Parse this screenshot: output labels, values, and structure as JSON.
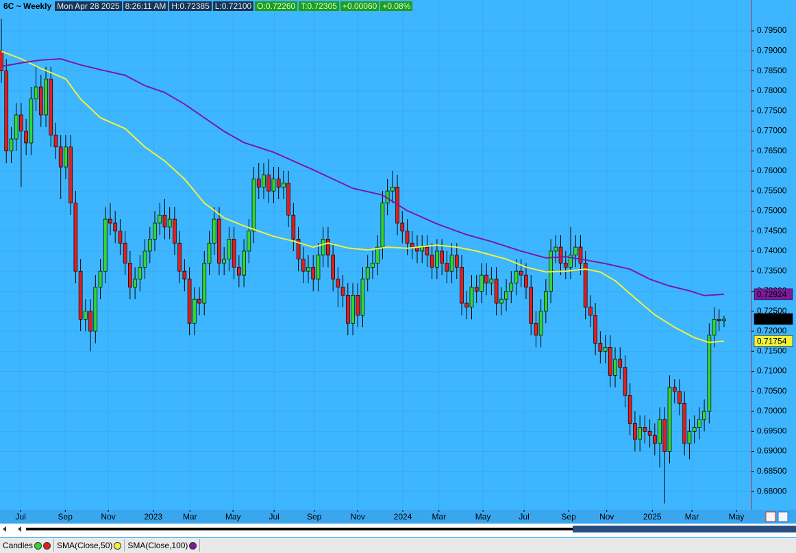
{
  "header": {
    "symbol": "6C ~ Weekly",
    "date": "Mon Apr 28 2025",
    "time": "8:26:11 AM",
    "high": "H:0.72385",
    "low": "L:0.72100",
    "open": "O:0.72260",
    "last": "T:0.72305",
    "change": "+0.00060",
    "change_pct": "+0.08%"
  },
  "chart_data": {
    "type": "candlestick",
    "grid": true,
    "ylim": [
      0.6754,
      0.8027
    ],
    "yticks": [
      {
        "value": 0.68,
        "label": "0.68000"
      },
      {
        "value": 0.685,
        "label": "0.68500"
      },
      {
        "value": 0.69,
        "label": "0.69000"
      },
      {
        "value": 0.695,
        "label": "0.69500"
      },
      {
        "value": 0.7,
        "label": "0.70000"
      },
      {
        "value": 0.705,
        "label": "0.70500"
      },
      {
        "value": 0.71,
        "label": "0.71000"
      },
      {
        "value": 0.715,
        "label": "0.71500"
      },
      {
        "value": 0.72,
        "label": "0.72000"
      },
      {
        "value": 0.725,
        "label": "0.72500"
      },
      {
        "value": 0.73,
        "label": "0.73000"
      },
      {
        "value": 0.735,
        "label": "0.73500"
      },
      {
        "value": 0.74,
        "label": "0.74000"
      },
      {
        "value": 0.745,
        "label": "0.74500"
      },
      {
        "value": 0.75,
        "label": "0.75000"
      },
      {
        "value": 0.755,
        "label": "0.75500"
      },
      {
        "value": 0.76,
        "label": "0.76000"
      },
      {
        "value": 0.765,
        "label": "0.76500"
      },
      {
        "value": 0.77,
        "label": "0.77000"
      },
      {
        "value": 0.775,
        "label": "0.77500"
      },
      {
        "value": 0.78,
        "label": "0.78000"
      },
      {
        "value": 0.785,
        "label": "0.78500"
      },
      {
        "value": 0.79,
        "label": "0.79000"
      },
      {
        "value": 0.795,
        "label": "0.79500"
      }
    ],
    "xticks": [
      {
        "value": 3.9,
        "label": "Jul"
      },
      {
        "value": 12.9,
        "label": "Sep"
      },
      {
        "value": 21.6,
        "label": "Nov"
      },
      {
        "value": 30.7,
        "label": "2023"
      },
      {
        "value": 38.1,
        "label": "Mar"
      },
      {
        "value": 46.8,
        "label": "May"
      },
      {
        "value": 55.1,
        "label": "Jul"
      },
      {
        "value": 63.2,
        "label": "Sep"
      },
      {
        "value": 72.0,
        "label": "Nov"
      },
      {
        "value": 81.1,
        "label": "2024"
      },
      {
        "value": 88.4,
        "label": "Mar"
      },
      {
        "value": 97.3,
        "label": "May"
      },
      {
        "value": 105.6,
        "label": "Jul"
      },
      {
        "value": 114.6,
        "label": "Sep"
      },
      {
        "value": 122.3,
        "label": "Nov"
      },
      {
        "value": 131.5,
        "label": "2025"
      },
      {
        "value": 139.5,
        "label": "Mar"
      },
      {
        "value": 148.5,
        "label": "May"
      }
    ],
    "candles": {
      "name": "Candles",
      "up_color": "#33d633",
      "down_color": "#e01e1e",
      "open": [
        0.79,
        0.785,
        0.765,
        0.768,
        0.774,
        0.77,
        0.767,
        0.778,
        0.781,
        0.774,
        0.783,
        0.769,
        0.766,
        0.761,
        0.766,
        0.752,
        0.735,
        0.723,
        0.725,
        0.72,
        0.731,
        0.735,
        0.748,
        0.747,
        0.745,
        0.742,
        0.737,
        0.731,
        0.733,
        0.736,
        0.74,
        0.743,
        0.747,
        0.749,
        0.746,
        0.748,
        0.742,
        0.735,
        0.733,
        0.722,
        0.728,
        0.727,
        0.737,
        0.742,
        0.748,
        0.737,
        0.738,
        0.743,
        0.736,
        0.734,
        0.74,
        0.745,
        0.758,
        0.756,
        0.759,
        0.755,
        0.758,
        0.756,
        0.757,
        0.749,
        0.743,
        0.738,
        0.735,
        0.736,
        0.733,
        0.739,
        0.743,
        0.739,
        0.733,
        0.731,
        0.729,
        0.722,
        0.729,
        0.724,
        0.733,
        0.736,
        0.737,
        0.741,
        0.752,
        0.755,
        0.756,
        0.747,
        0.745,
        0.742,
        0.741,
        0.74,
        0.741,
        0.739,
        0.736,
        0.74,
        0.737,
        0.735,
        0.739,
        0.736,
        0.727,
        0.726,
        0.731,
        0.73,
        0.734,
        0.732,
        0.733,
        0.727,
        0.728,
        0.73,
        0.732,
        0.735,
        0.734,
        0.731,
        0.722,
        0.719,
        0.725,
        0.73,
        0.74,
        0.741,
        0.737,
        0.736,
        0.739,
        0.741,
        0.737,
        0.726,
        0.724,
        0.717,
        0.715,
        0.716,
        0.709,
        0.713,
        0.711,
        0.704,
        0.697,
        0.693,
        0.696,
        0.695,
        0.694,
        0.692,
        0.698,
        0.69,
        0.706,
        0.705,
        0.702,
        0.692,
        0.695,
        0.696,
        0.698,
        0.7,
        0.719,
        0.723,
        0.7226
      ],
      "high": [
        0.798,
        0.788,
        0.771,
        0.777,
        0.777,
        0.773,
        0.781,
        0.786,
        0.784,
        0.786,
        0.786,
        0.772,
        0.769,
        0.769,
        0.769,
        0.755,
        0.738,
        0.728,
        0.728,
        0.734,
        0.738,
        0.751,
        0.752,
        0.75,
        0.748,
        0.745,
        0.74,
        0.736,
        0.739,
        0.743,
        0.746,
        0.75,
        0.752,
        0.753,
        0.751,
        0.751,
        0.745,
        0.738,
        0.736,
        0.731,
        0.731,
        0.74,
        0.745,
        0.751,
        0.751,
        0.741,
        0.746,
        0.746,
        0.739,
        0.743,
        0.748,
        0.761,
        0.762,
        0.762,
        0.763,
        0.761,
        0.761,
        0.76,
        0.76,
        0.752,
        0.746,
        0.741,
        0.739,
        0.739,
        0.742,
        0.746,
        0.746,
        0.742,
        0.736,
        0.734,
        0.732,
        0.732,
        0.732,
        0.736,
        0.739,
        0.74,
        0.744,
        0.755,
        0.758,
        0.76,
        0.759,
        0.75,
        0.748,
        0.745,
        0.744,
        0.744,
        0.744,
        0.742,
        0.743,
        0.743,
        0.74,
        0.742,
        0.742,
        0.739,
        0.73,
        0.734,
        0.734,
        0.737,
        0.737,
        0.736,
        0.736,
        0.731,
        0.733,
        0.735,
        0.738,
        0.738,
        0.737,
        0.734,
        0.725,
        0.728,
        0.733,
        0.743,
        0.744,
        0.744,
        0.74,
        0.746,
        0.744,
        0.744,
        0.74,
        0.729,
        0.727,
        0.72,
        0.719,
        0.719,
        0.716,
        0.716,
        0.714,
        0.707,
        0.7,
        0.699,
        0.699,
        0.698,
        0.697,
        0.701,
        0.701,
        0.709,
        0.708,
        0.708,
        0.705,
        0.698,
        0.699,
        0.701,
        0.703,
        0.722,
        0.726,
        0.7255,
        0.72385
      ],
      "low": [
        0.782,
        0.762,
        0.762,
        0.765,
        0.756,
        0.764,
        0.764,
        0.775,
        0.771,
        0.771,
        0.766,
        0.763,
        0.753,
        0.758,
        0.749,
        0.732,
        0.72,
        0.72,
        0.715,
        0.717,
        0.728,
        0.732,
        0.744,
        0.742,
        0.739,
        0.734,
        0.728,
        0.728,
        0.73,
        0.733,
        0.737,
        0.74,
        0.744,
        0.743,
        0.743,
        0.739,
        0.732,
        0.73,
        0.719,
        0.719,
        0.724,
        0.724,
        0.734,
        0.739,
        0.734,
        0.734,
        0.735,
        0.733,
        0.731,
        0.731,
        0.737,
        0.742,
        0.753,
        0.753,
        0.752,
        0.752,
        0.753,
        0.753,
        0.746,
        0.74,
        0.735,
        0.732,
        0.732,
        0.73,
        0.73,
        0.736,
        0.736,
        0.73,
        0.726,
        0.726,
        0.719,
        0.719,
        0.721,
        0.721,
        0.73,
        0.733,
        0.734,
        0.738,
        0.749,
        0.752,
        0.744,
        0.742,
        0.739,
        0.738,
        0.737,
        0.737,
        0.736,
        0.733,
        0.733,
        0.734,
        0.732,
        0.732,
        0.733,
        0.724,
        0.723,
        0.723,
        0.727,
        0.727,
        0.729,
        0.729,
        0.724,
        0.724,
        0.725,
        0.727,
        0.729,
        0.731,
        0.728,
        0.719,
        0.716,
        0.716,
        0.722,
        0.727,
        0.737,
        0.734,
        0.733,
        0.733,
        0.736,
        0.734,
        0.723,
        0.721,
        0.714,
        0.712,
        0.712,
        0.706,
        0.706,
        0.708,
        0.701,
        0.694,
        0.69,
        0.69,
        0.692,
        0.691,
        0.689,
        0.686,
        0.677,
        0.687,
        0.702,
        0.699,
        0.689,
        0.688,
        0.692,
        0.693,
        0.695,
        0.697,
        0.716,
        0.72,
        0.721
      ],
      "close": [
        0.785,
        0.765,
        0.768,
        0.774,
        0.77,
        0.767,
        0.778,
        0.781,
        0.774,
        0.783,
        0.769,
        0.766,
        0.761,
        0.766,
        0.752,
        0.735,
        0.723,
        0.725,
        0.72,
        0.731,
        0.735,
        0.748,
        0.747,
        0.745,
        0.742,
        0.737,
        0.731,
        0.733,
        0.736,
        0.74,
        0.743,
        0.747,
        0.749,
        0.746,
        0.748,
        0.742,
        0.735,
        0.733,
        0.722,
        0.728,
        0.727,
        0.737,
        0.742,
        0.748,
        0.737,
        0.738,
        0.743,
        0.736,
        0.734,
        0.74,
        0.745,
        0.758,
        0.756,
        0.759,
        0.755,
        0.758,
        0.756,
        0.757,
        0.749,
        0.743,
        0.738,
        0.735,
        0.736,
        0.733,
        0.739,
        0.743,
        0.739,
        0.733,
        0.731,
        0.729,
        0.722,
        0.729,
        0.724,
        0.733,
        0.736,
        0.737,
        0.741,
        0.752,
        0.755,
        0.756,
        0.747,
        0.745,
        0.742,
        0.741,
        0.74,
        0.741,
        0.739,
        0.736,
        0.74,
        0.737,
        0.735,
        0.739,
        0.736,
        0.727,
        0.726,
        0.731,
        0.73,
        0.734,
        0.732,
        0.733,
        0.727,
        0.728,
        0.73,
        0.732,
        0.735,
        0.734,
        0.731,
        0.722,
        0.719,
        0.725,
        0.73,
        0.74,
        0.741,
        0.737,
        0.736,
        0.739,
        0.741,
        0.737,
        0.726,
        0.724,
        0.717,
        0.715,
        0.716,
        0.709,
        0.713,
        0.711,
        0.704,
        0.697,
        0.693,
        0.696,
        0.695,
        0.694,
        0.692,
        0.698,
        0.69,
        0.706,
        0.705,
        0.702,
        0.692,
        0.695,
        0.696,
        0.698,
        0.7,
        0.719,
        0.723,
        0.7226,
        0.72305
      ]
    },
    "series": [
      {
        "name": "SMA(Close,50)",
        "color": "#f2f23a",
        "x": [
          0,
          4,
          8,
          13,
          16,
          20,
          25,
          29,
          33,
          37,
          41,
          45,
          49,
          55,
          59,
          63,
          66,
          70,
          74,
          78,
          82,
          88,
          92,
          96,
          102,
          106,
          110,
          114,
          118,
          121,
          124,
          128,
          132,
          136,
          140,
          143,
          146
        ],
        "values": [
          0.7899,
          0.788,
          0.7856,
          0.783,
          0.778,
          0.7733,
          0.7706,
          0.766,
          0.7625,
          0.758,
          0.752,
          0.7483,
          0.7463,
          0.7437,
          0.7425,
          0.741,
          0.742,
          0.7408,
          0.7403,
          0.741,
          0.7407,
          0.7415,
          0.741,
          0.74,
          0.738,
          0.736,
          0.7348,
          0.735,
          0.7355,
          0.7348,
          0.7326,
          0.7283,
          0.7241,
          0.721,
          0.7184,
          0.7172,
          0.71754
        ]
      },
      {
        "name": "SMA(Close,100)",
        "color": "#7a1a9e",
        "x": [
          0,
          4,
          8,
          12,
          16,
          20,
          25,
          29,
          33,
          37,
          41,
          45,
          49,
          55,
          59,
          63,
          67,
          71,
          77,
          82,
          88,
          94,
          99,
          105,
          110,
          114,
          118,
          122,
          127,
          131,
          135,
          139,
          142,
          146
        ],
        "values": [
          0.7861,
          0.787,
          0.7877,
          0.788,
          0.7865,
          0.7853,
          0.7839,
          0.7813,
          0.7796,
          0.7767,
          0.7733,
          0.7699,
          0.7671,
          0.7647,
          0.7625,
          0.7603,
          0.758,
          0.7557,
          0.754,
          0.7501,
          0.7468,
          0.7441,
          0.7424,
          0.74,
          0.7383,
          0.7386,
          0.7378,
          0.7369,
          0.7355,
          0.733,
          0.7313,
          0.7301,
          0.7289,
          0.72924
        ]
      }
    ]
  }
}
